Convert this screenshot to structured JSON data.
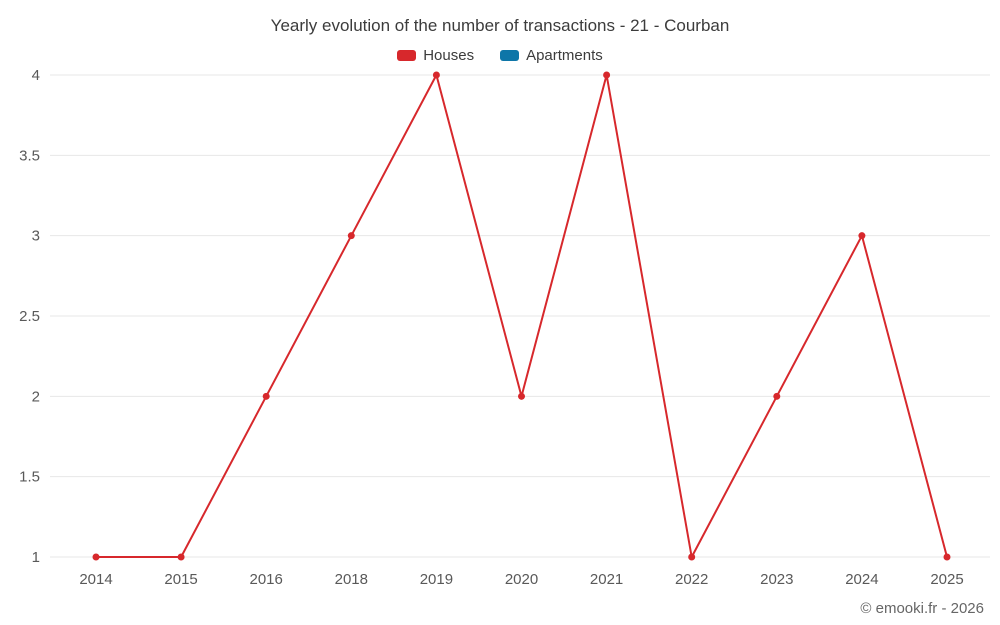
{
  "chart_data": {
    "type": "line",
    "title": "Yearly evolution of the number of transactions - 21 - Courban",
    "categories": [
      "2014",
      "2015",
      "2016",
      "2018",
      "2019",
      "2020",
      "2021",
      "2022",
      "2023",
      "2024",
      "2025"
    ],
    "series": [
      {
        "name": "Houses",
        "color": "#d7282c",
        "values": [
          1,
          1,
          2,
          3,
          4,
          2,
          4,
          1,
          2,
          3,
          1
        ]
      },
      {
        "name": "Apartments",
        "color": "#0e76a8",
        "values": []
      }
    ],
    "xlabel": "",
    "ylabel": "",
    "ylim": [
      1,
      4
    ],
    "yticks": [
      1,
      1.5,
      2,
      2.5,
      3,
      3.5,
      4
    ],
    "grid": true,
    "legend_position": "top",
    "footer": "© emooki.fr - 2026"
  }
}
